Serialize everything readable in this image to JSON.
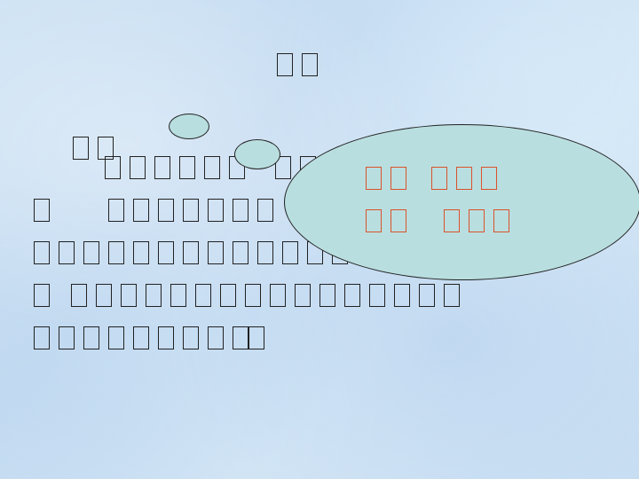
{
  "title": "□□",
  "body_lines": [
    "□□",
    "□□□□□□□ □□□",
    "□ □□□□□□□□□",
    "□□□□□□□□□□□□□□□□□□",
    "□ □□□□□□□□□□□□□□□□□□□",
    "□□□□□□□□□□□"
  ],
  "callout_lines": [
    "□□ □□□",
    "□□ □□□"
  ],
  "colors": {
    "callout_text": "#d9532c",
    "bubble_fill": "#b9dedf"
  }
}
